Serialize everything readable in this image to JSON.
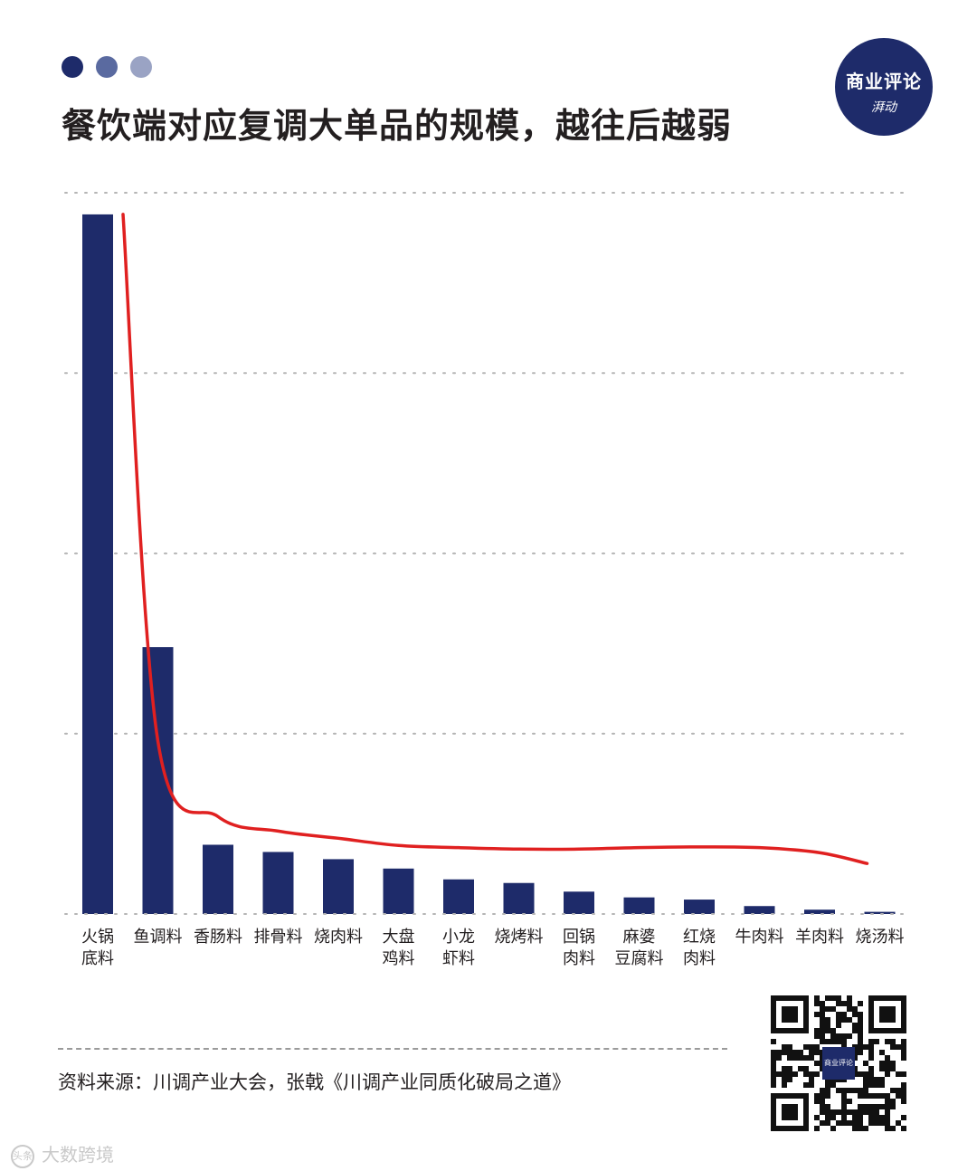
{
  "header": {
    "title": "餐饮端对应复调大单品的规模，越往后越弱",
    "dot_colors": [
      "#1e2b6a",
      "#5a6aa0",
      "#9aa3c4"
    ]
  },
  "logo": {
    "top_text": "商业评论",
    "bottom_text": "湃动"
  },
  "chart_data": {
    "type": "bar",
    "title": "餐饮端对应复调大单品的规模，越往后越弱",
    "categories": [
      [
        "火锅",
        "底料"
      ],
      [
        "鱼调料"
      ],
      [
        "香肠料"
      ],
      [
        "排骨料"
      ],
      [
        "烧肉料"
      ],
      [
        "大盘",
        "鸡料"
      ],
      [
        "小龙",
        "虾料"
      ],
      [
        "烧烤料"
      ],
      [
        "回锅",
        "肉料"
      ],
      [
        "麻婆",
        "豆腐料"
      ],
      [
        "红烧",
        "肉料"
      ],
      [
        "牛肉料"
      ],
      [
        "羊肉料"
      ],
      [
        "烧汤料"
      ]
    ],
    "values": [
      97,
      37,
      9.6,
      8.6,
      7.6,
      6.3,
      4.8,
      4.3,
      3.1,
      2.3,
      2.0,
      1.1,
      0.6,
      0.3
    ],
    "ylim": [
      0,
      100
    ],
    "gridlines": [
      0,
      25,
      50,
      75,
      100
    ],
    "y_tick_labels_shown": false,
    "xlabel": "",
    "ylabel": "",
    "bar_color": "#1e2b6a",
    "trend_color": "#e02020",
    "trend_values": [
      97,
      24,
      13.5,
      11.5,
      10.5,
      9.5,
      9.2,
      9.0,
      9.0,
      9.2,
      9.3,
      9.2,
      8.5,
      7.0
    ]
  },
  "footer": {
    "source": "资料来源：川调产业大会，张戟《川调产业同质化破局之道》",
    "qr_label": "商业评论"
  },
  "watermark": {
    "icon": "头条",
    "text": "大数跨境"
  }
}
